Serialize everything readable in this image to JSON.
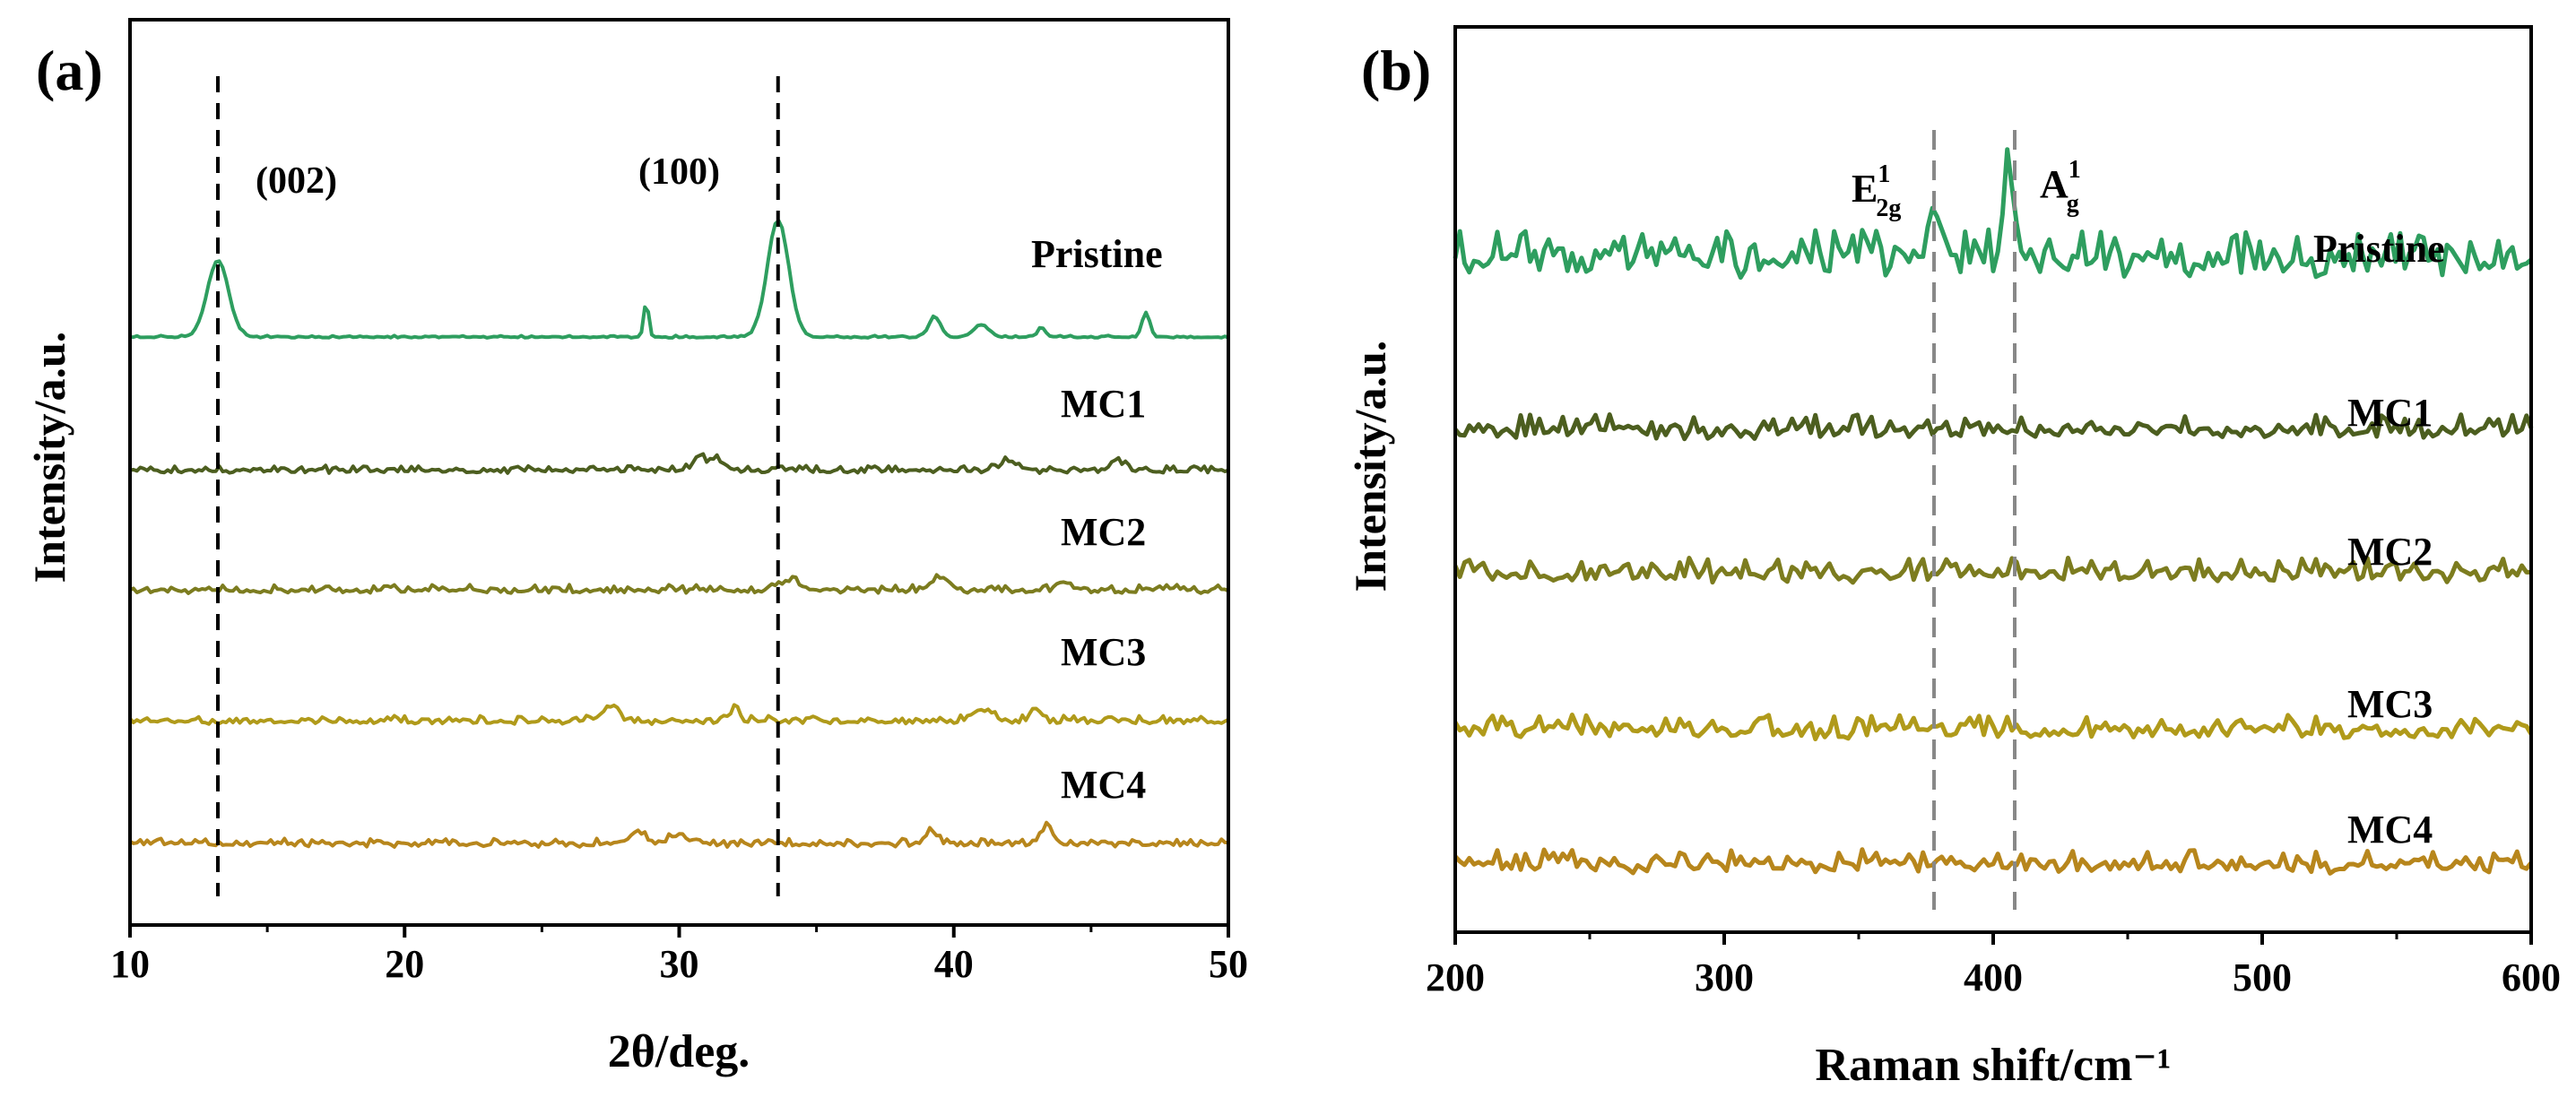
{
  "chart_data": [
    {
      "type": "line",
      "panel_label": "(a)",
      "xlabel": "2θ/deg.",
      "ylabel": "Intensity/a.u.",
      "xlim": [
        10,
        50
      ],
      "xticks": [
        10,
        20,
        30,
        40,
        50
      ],
      "xtick_labels": [
        "10",
        "20",
        "30",
        "40",
        "50"
      ],
      "y_ticks_shown": false,
      "grid": false,
      "series": [
        {
          "name": "Pristine",
          "color": "#2e9e5f",
          "noise": 0.06,
          "peaks": [
            [
              13.2,
              0.95,
              0.55
            ],
            [
              28.8,
              0.45,
              0.12
            ],
            [
              33.6,
              1.45,
              0.55
            ],
            [
              39.3,
              0.25,
              0.3
            ],
            [
              41.0,
              0.15,
              0.4
            ],
            [
              47.0,
              0.3,
              0.2
            ],
            [
              43.2,
              0.12,
              0.2
            ]
          ]
        },
        {
          "name": "MC1",
          "color": "#4c5e1f",
          "noise": 0.55,
          "peaks": [
            [
              30.7,
              0.5,
              0.3
            ],
            [
              31.3,
              0.4,
              0.3
            ],
            [
              42.0,
              0.35,
              0.5
            ],
            [
              46.0,
              0.3,
              0.3
            ]
          ]
        },
        {
          "name": "MC2",
          "color": "#7c7c1f",
          "noise": 0.6,
          "peaks": [
            [
              34.0,
              0.35,
              0.6
            ],
            [
              39.5,
              0.4,
              0.5
            ],
            [
              44.0,
              0.3,
              0.4
            ]
          ]
        },
        {
          "name": "MC3",
          "color": "#b09a1a",
          "noise": 0.6,
          "peaks": [
            [
              27.5,
              0.45,
              0.4
            ],
            [
              32.0,
              0.4,
              0.3
            ],
            [
              41.0,
              0.45,
              0.5
            ],
            [
              43.0,
              0.3,
              0.3
            ]
          ]
        },
        {
          "name": "MC4",
          "color": "#b7861c",
          "noise": 0.6,
          "peaks": [
            [
              28.5,
              0.45,
              0.4
            ],
            [
              30.0,
              0.4,
              0.4
            ],
            [
              39.2,
              0.45,
              0.3
            ],
            [
              43.4,
              0.7,
              0.25
            ]
          ]
        }
      ],
      "annotations": [
        {
          "text": "(002)",
          "x": 13.2
        },
        {
          "text": "(100)",
          "x": 33.6
        }
      ],
      "reference_lines": [
        13.2,
        33.6
      ],
      "reference_line_color": "#000000"
    },
    {
      "type": "line",
      "panel_label": "(b)",
      "xlabel": "Raman shift/cm⁻¹",
      "ylabel": "Intensity/a.u.",
      "xlim": [
        200,
        600
      ],
      "xticks": [
        200,
        300,
        400,
        500,
        600
      ],
      "xtick_labels": [
        "200",
        "300",
        "400",
        "500",
        "600"
      ],
      "y_ticks_shown": false,
      "grid": false,
      "series": [
        {
          "name": "Pristine",
          "color": "#2e9e5f",
          "noise": 1.0,
          "peaks": [
            [
              378,
              0.5,
              4
            ],
            [
              406,
              0.9,
              3
            ]
          ]
        },
        {
          "name": "MC1",
          "color": "#4c5e1f",
          "noise": 1.0,
          "peaks": []
        },
        {
          "name": "MC2",
          "color": "#7c7c1f",
          "noise": 1.0,
          "peaks": []
        },
        {
          "name": "MC3",
          "color": "#b09a1a",
          "noise": 1.0,
          "peaks": []
        },
        {
          "name": "MC4",
          "color": "#b7861c",
          "noise": 1.0,
          "peaks": []
        }
      ],
      "annotations": [
        {
          "text": "E",
          "sup": "1",
          "sub": "2g",
          "x": 378
        },
        {
          "text": "A",
          "sup": "1",
          "sub": "g",
          "x": 408
        }
      ],
      "reference_lines": [
        378,
        408
      ],
      "reference_line_color": "#888888"
    }
  ]
}
